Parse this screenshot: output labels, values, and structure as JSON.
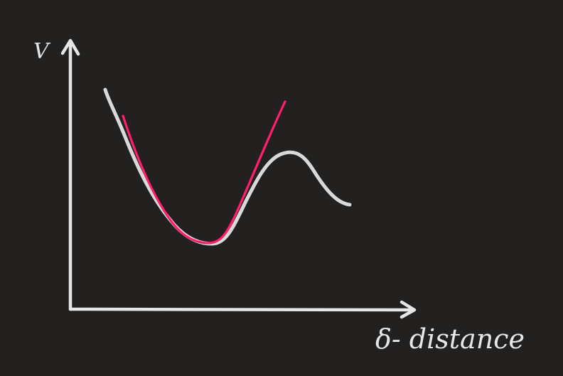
{
  "colors": {
    "background": "#222120",
    "chalk": "#e6e6e6",
    "potential_curve": "#d9d9d9",
    "harmonic_fit": "#ff1f6e"
  },
  "labels": {
    "y_axis": "V",
    "x_axis": "δ- distance"
  },
  "curves": [
    {
      "name": "potential-energy-curve"
    },
    {
      "name": "harmonic-approximation"
    }
  ]
}
